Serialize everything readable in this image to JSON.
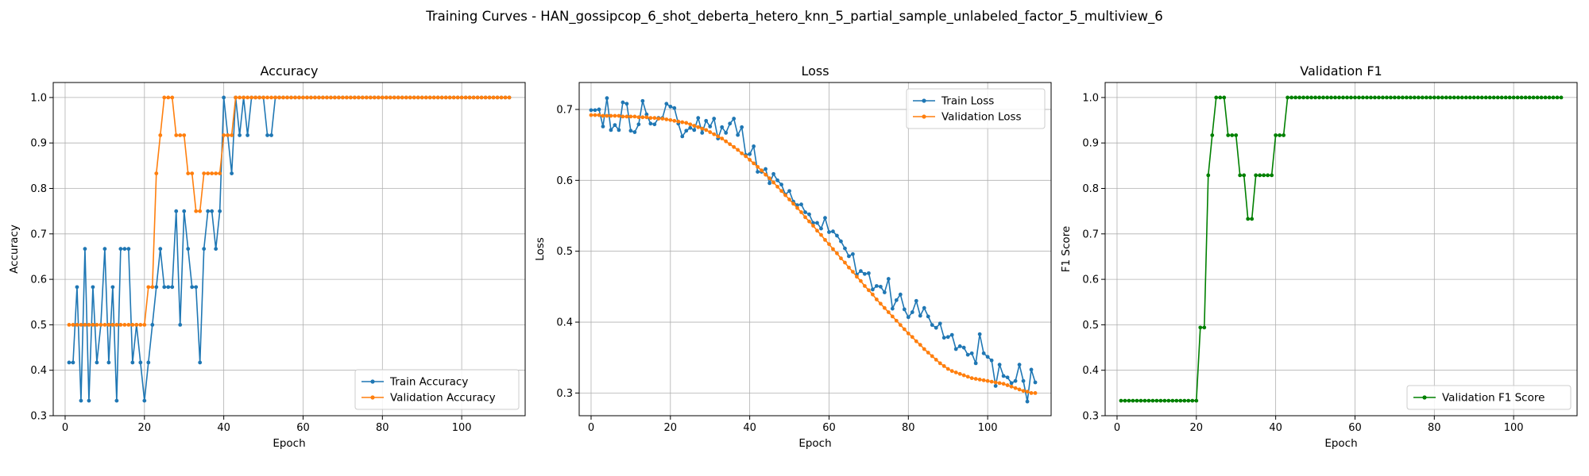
{
  "figure_title": "Training Curves - HAN_gossipcop_6_shot_deberta_hetero_knn_5_partial_sample_unlabeled_factor_5_multiview_6",
  "colors": {
    "blue": "#1f77b4",
    "orange": "#ff7f0e",
    "green": "#008000",
    "grid": "#b0b0b0"
  },
  "chart_data": [
    {
      "type": "line",
      "title": "Accuracy",
      "xlabel": "Epoch",
      "ylabel": "Accuracy",
      "xlim": [
        -3,
        116
      ],
      "ylim": [
        0.3,
        1.033
      ],
      "xticks": [
        0,
        20,
        40,
        60,
        80,
        100
      ],
      "yticks": [
        0.3,
        0.4,
        0.5,
        0.6,
        0.7,
        0.8,
        0.9,
        1.0
      ],
      "ytick_labels": [
        "0.3",
        "0.4",
        "0.5",
        "0.6",
        "0.7",
        "0.8",
        "0.9",
        "1.0"
      ],
      "grid": true,
      "legend_loc": "lower-right",
      "series": [
        {
          "name": "Train Accuracy",
          "color": "#1f77b4",
          "x_start": 1,
          "values": [
            0.417,
            0.417,
            0.583,
            0.333,
            0.667,
            0.333,
            0.583,
            0.417,
            0.5,
            0.667,
            0.417,
            0.583,
            0.333,
            0.667,
            0.667,
            0.667,
            0.417,
            0.5,
            0.417,
            0.333,
            0.417,
            0.5,
            0.583,
            0.667,
            0.583,
            0.583,
            0.583,
            0.75,
            0.5,
            0.75,
            0.667,
            0.583,
            0.583,
            0.417,
            0.667,
            0.75,
            0.75,
            0.667,
            0.75,
            1.0,
            0.917,
            0.833,
            1.0,
            0.917,
            1.0,
            0.917,
            1.0,
            1.0,
            1.0,
            1.0,
            0.917,
            0.917,
            1.0,
            1.0,
            1.0,
            1.0,
            1.0,
            1.0,
            1.0,
            1.0,
            1.0,
            1.0,
            1.0,
            1.0,
            1.0,
            1.0,
            1.0,
            1.0,
            1.0,
            1.0,
            1.0,
            1.0,
            1.0,
            1.0,
            1.0,
            1.0,
            1.0,
            1.0,
            1.0,
            1.0,
            1.0,
            1.0,
            1.0,
            1.0,
            1.0,
            1.0,
            1.0,
            1.0,
            1.0,
            1.0,
            1.0,
            1.0,
            1.0,
            1.0,
            1.0,
            1.0,
            1.0,
            1.0,
            1.0,
            1.0,
            1.0,
            1.0,
            1.0,
            1.0,
            1.0,
            1.0,
            1.0,
            1.0,
            1.0,
            1.0,
            1.0,
            1.0
          ]
        },
        {
          "name": "Validation Accuracy",
          "color": "#ff7f0e",
          "x_start": 1,
          "values": [
            0.5,
            0.5,
            0.5,
            0.5,
            0.5,
            0.5,
            0.5,
            0.5,
            0.5,
            0.5,
            0.5,
            0.5,
            0.5,
            0.5,
            0.5,
            0.5,
            0.5,
            0.5,
            0.5,
            0.5,
            0.583,
            0.583,
            0.833,
            0.917,
            1.0,
            1.0,
            1.0,
            0.917,
            0.917,
            0.917,
            0.833,
            0.833,
            0.75,
            0.75,
            0.833,
            0.833,
            0.833,
            0.833,
            0.833,
            0.917,
            0.917,
            0.917,
            1.0,
            1.0,
            1.0,
            1.0,
            1.0,
            1.0,
            1.0,
            1.0,
            1.0,
            1.0,
            1.0,
            1.0,
            1.0,
            1.0,
            1.0,
            1.0,
            1.0,
            1.0,
            1.0,
            1.0,
            1.0,
            1.0,
            1.0,
            1.0,
            1.0,
            1.0,
            1.0,
            1.0,
            1.0,
            1.0,
            1.0,
            1.0,
            1.0,
            1.0,
            1.0,
            1.0,
            1.0,
            1.0,
            1.0,
            1.0,
            1.0,
            1.0,
            1.0,
            1.0,
            1.0,
            1.0,
            1.0,
            1.0,
            1.0,
            1.0,
            1.0,
            1.0,
            1.0,
            1.0,
            1.0,
            1.0,
            1.0,
            1.0,
            1.0,
            1.0,
            1.0,
            1.0,
            1.0,
            1.0,
            1.0,
            1.0,
            1.0,
            1.0,
            1.0,
            1.0
          ]
        }
      ]
    },
    {
      "type": "line",
      "title": "Loss",
      "xlabel": "Epoch",
      "ylabel": "Loss",
      "xlim": [
        -3,
        116
      ],
      "ylim": [
        0.268,
        0.738
      ],
      "xticks": [
        0,
        20,
        40,
        60,
        80,
        100
      ],
      "yticks": [
        0.3,
        0.4,
        0.5,
        0.6,
        0.7
      ],
      "ytick_labels": [
        "0.3",
        "0.4",
        "0.5",
        "0.6",
        "0.7"
      ],
      "grid": true,
      "legend_loc": "upper-right",
      "series": [
        {
          "name": "Train Loss",
          "color": "#1f77b4",
          "x_start": 0,
          "values": [
            0.699,
            0.699,
            0.7,
            0.676,
            0.716,
            0.671,
            0.678,
            0.671,
            0.71,
            0.708,
            0.67,
            0.668,
            0.679,
            0.712,
            0.693,
            0.68,
            0.679,
            0.688,
            0.688,
            0.708,
            0.704,
            0.702,
            0.68,
            0.662,
            0.67,
            0.674,
            0.671,
            0.688,
            0.667,
            0.684,
            0.676,
            0.687,
            0.659,
            0.675,
            0.667,
            0.68,
            0.687,
            0.664,
            0.675,
            0.636,
            0.637,
            0.648,
            0.612,
            0.612,
            0.616,
            0.596,
            0.609,
            0.6,
            0.594,
            0.58,
            0.585,
            0.57,
            0.565,
            0.566,
            0.555,
            0.552,
            0.54,
            0.54,
            0.532,
            0.547,
            0.527,
            0.528,
            0.522,
            0.514,
            0.504,
            0.493,
            0.496,
            0.467,
            0.472,
            0.468,
            0.469,
            0.446,
            0.451,
            0.45,
            0.442,
            0.461,
            0.419,
            0.431,
            0.439,
            0.418,
            0.407,
            0.414,
            0.43,
            0.409,
            0.42,
            0.408,
            0.396,
            0.392,
            0.398,
            0.378,
            0.379,
            0.382,
            0.362,
            0.366,
            0.364,
            0.354,
            0.356,
            0.342,
            0.383,
            0.356,
            0.351,
            0.346,
            0.31,
            0.34,
            0.324,
            0.322,
            0.314,
            0.317,
            0.34,
            0.317,
            0.288,
            0.333,
            0.315
          ]
        },
        {
          "name": "Validation Loss",
          "color": "#ff7f0e",
          "x_start": 0,
          "values": [
            0.692,
            0.692,
            0.692,
            0.691,
            0.691,
            0.691,
            0.691,
            0.691,
            0.69,
            0.69,
            0.69,
            0.69,
            0.689,
            0.689,
            0.689,
            0.688,
            0.688,
            0.687,
            0.687,
            0.686,
            0.685,
            0.684,
            0.683,
            0.682,
            0.681,
            0.679,
            0.677,
            0.675,
            0.673,
            0.671,
            0.668,
            0.665,
            0.662,
            0.659,
            0.655,
            0.651,
            0.647,
            0.643,
            0.638,
            0.634,
            0.629,
            0.624,
            0.619,
            0.614,
            0.608,
            0.603,
            0.597,
            0.591,
            0.585,
            0.579,
            0.573,
            0.567,
            0.561,
            0.555,
            0.548,
            0.542,
            0.536,
            0.529,
            0.523,
            0.516,
            0.51,
            0.503,
            0.497,
            0.49,
            0.484,
            0.477,
            0.471,
            0.464,
            0.458,
            0.451,
            0.445,
            0.439,
            0.432,
            0.426,
            0.42,
            0.414,
            0.408,
            0.402,
            0.396,
            0.39,
            0.384,
            0.379,
            0.373,
            0.368,
            0.362,
            0.357,
            0.352,
            0.347,
            0.342,
            0.338,
            0.334,
            0.331,
            0.329,
            0.327,
            0.325,
            0.323,
            0.321,
            0.32,
            0.319,
            0.318,
            0.317,
            0.316,
            0.315,
            0.314,
            0.313,
            0.311,
            0.309,
            0.307,
            0.305,
            0.303,
            0.302,
            0.3,
            0.3
          ]
        }
      ]
    },
    {
      "type": "line",
      "title": "Validation F1",
      "xlabel": "Epoch",
      "ylabel": "F1 Score",
      "xlim": [
        -3,
        116
      ],
      "ylim": [
        0.3,
        1.033
      ],
      "xticks": [
        0,
        20,
        40,
        60,
        80,
        100
      ],
      "yticks": [
        0.3,
        0.4,
        0.5,
        0.6,
        0.7,
        0.8,
        0.9,
        1.0
      ],
      "ytick_labels": [
        "0.3",
        "0.4",
        "0.5",
        "0.6",
        "0.7",
        "0.8",
        "0.9",
        "1.0"
      ],
      "grid": true,
      "legend_loc": "lower-right",
      "series": [
        {
          "name": "Validation F1 Score",
          "color": "#008000",
          "x_start": 1,
          "values": [
            0.333,
            0.333,
            0.333,
            0.333,
            0.333,
            0.333,
            0.333,
            0.333,
            0.333,
            0.333,
            0.333,
            0.333,
            0.333,
            0.333,
            0.333,
            0.333,
            0.333,
            0.333,
            0.333,
            0.333,
            0.494,
            0.494,
            0.829,
            0.917,
            1.0,
            1.0,
            1.0,
            0.917,
            0.917,
            0.917,
            0.829,
            0.829,
            0.733,
            0.733,
            0.829,
            0.829,
            0.829,
            0.829,
            0.829,
            0.917,
            0.917,
            0.917,
            1.0,
            1.0,
            1.0,
            1.0,
            1.0,
            1.0,
            1.0,
            1.0,
            1.0,
            1.0,
            1.0,
            1.0,
            1.0,
            1.0,
            1.0,
            1.0,
            1.0,
            1.0,
            1.0,
            1.0,
            1.0,
            1.0,
            1.0,
            1.0,
            1.0,
            1.0,
            1.0,
            1.0,
            1.0,
            1.0,
            1.0,
            1.0,
            1.0,
            1.0,
            1.0,
            1.0,
            1.0,
            1.0,
            1.0,
            1.0,
            1.0,
            1.0,
            1.0,
            1.0,
            1.0,
            1.0,
            1.0,
            1.0,
            1.0,
            1.0,
            1.0,
            1.0,
            1.0,
            1.0,
            1.0,
            1.0,
            1.0,
            1.0,
            1.0,
            1.0,
            1.0,
            1.0,
            1.0,
            1.0,
            1.0,
            1.0,
            1.0,
            1.0,
            1.0,
            1.0
          ]
        }
      ]
    }
  ]
}
